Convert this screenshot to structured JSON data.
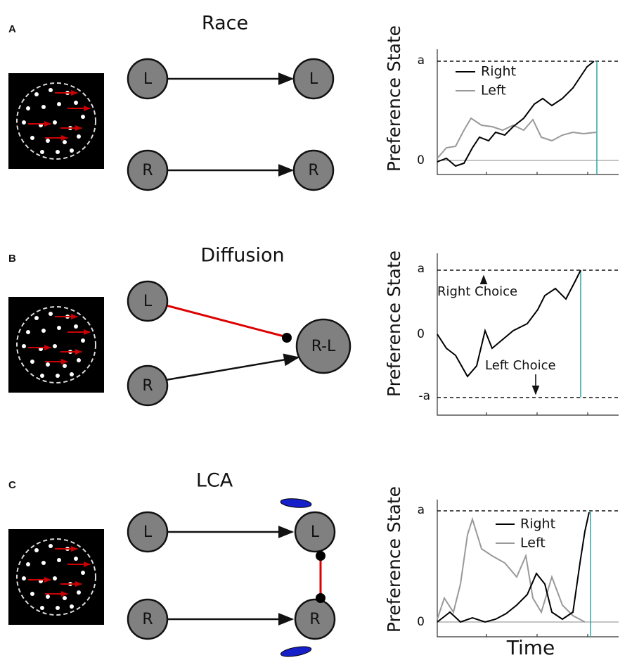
{
  "panels": [
    {
      "label": "A",
      "title": "Race",
      "nodes": [
        "L",
        "L",
        "R",
        "R"
      ],
      "plot": {
        "y_label": "Preference State",
        "ticks": [
          "a",
          "0"
        ],
        "legend": [
          "Right",
          "Left"
        ]
      }
    },
    {
      "label": "B",
      "title": "Diffusion",
      "nodes": [
        "L",
        "R",
        "R-L"
      ],
      "plot": {
        "y_label": "Preference State",
        "ticks": [
          "a",
          "0",
          "-a"
        ],
        "annotations": [
          "Right Choice",
          "Left Choice"
        ]
      }
    },
    {
      "label": "C",
      "title": "LCA",
      "nodes": [
        "L",
        "R",
        "L",
        "R"
      ],
      "plot": {
        "y_label": "Preference State",
        "ticks": [
          "a",
          "0"
        ],
        "legend": [
          "Right",
          "Left"
        ],
        "x_label": "Time"
      }
    }
  ]
}
